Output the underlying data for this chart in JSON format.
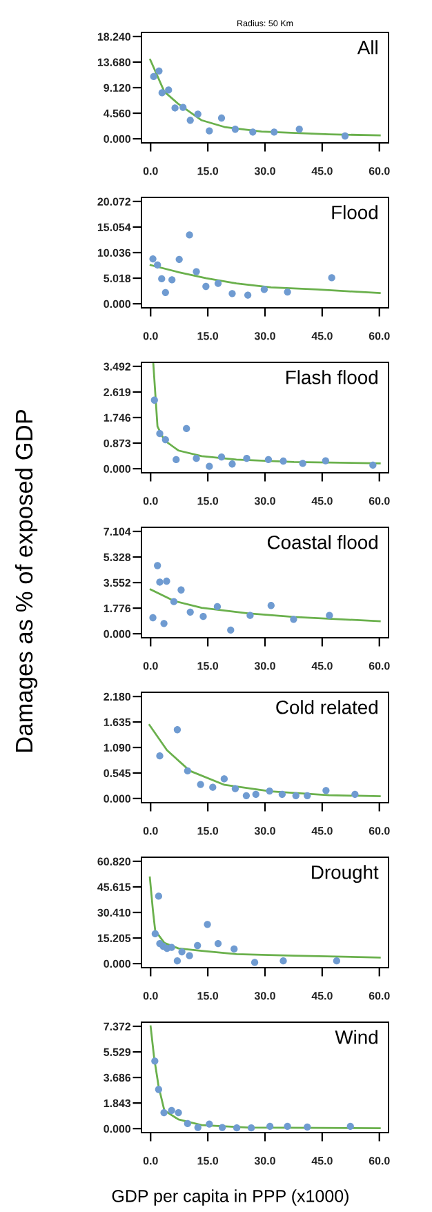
{
  "chart_data": [
    {
      "type": "scatter",
      "subtitle": "Radius: 50 Km",
      "title": "All",
      "xlim": [
        -2.4,
        62.4
      ],
      "ylim": [
        -0.73,
        18.97
      ],
      "xticks": [
        {
          "value": 0,
          "label": "0.0"
        },
        {
          "value": 15,
          "label": "15.0"
        },
        {
          "value": 30,
          "label": "30.0"
        },
        {
          "value": 45,
          "label": "45.0"
        },
        {
          "value": 60,
          "label": "60.0"
        }
      ],
      "yticks": [
        {
          "value": 0,
          "label": "0.000"
        },
        {
          "value": 4.56,
          "label": "4.560"
        },
        {
          "value": 9.12,
          "label": "9.120"
        },
        {
          "value": 13.68,
          "label": "13.680"
        },
        {
          "value": 18.24,
          "label": "18.240"
        }
      ],
      "series": [
        {
          "type": "scatter",
          "marker": "circle",
          "color": "#6f9bd1",
          "x": [
            0.8,
            2.2,
            3.0,
            4.7,
            6.4,
            8.5,
            10.4,
            12.4,
            15.4,
            18.6,
            22.2,
            26.8,
            32.4,
            39.0,
            51.0
          ],
          "values": [
            11.1,
            12.1,
            8.2,
            8.7,
            5.5,
            5.6,
            3.3,
            4.4,
            1.4,
            3.7,
            1.7,
            1.2,
            1.2,
            1.7,
            0.5
          ]
        },
        {
          "type": "line",
          "color": "#6ab04c",
          "x": [
            -0.1,
            3.6,
            7.3,
            13.4,
            19.4,
            29.1,
            46.8,
            60.1
          ],
          "values": [
            14.1,
            8.4,
            6.2,
            3.3,
            2.1,
            1.3,
            0.8,
            0.6
          ]
        }
      ]
    },
    {
      "type": "scatter",
      "title": "Flood",
      "xlim": [
        -2.4,
        62.4
      ],
      "ylim": [
        -0.8,
        20.87
      ],
      "xticks": [
        {
          "value": 0,
          "label": "0.0"
        },
        {
          "value": 15,
          "label": "15.0"
        },
        {
          "value": 30,
          "label": "30.0"
        },
        {
          "value": 45,
          "label": "45.0"
        },
        {
          "value": 60,
          "label": "60.0"
        }
      ],
      "yticks": [
        {
          "value": 0,
          "label": "0.000"
        },
        {
          "value": 5.018,
          "label": "5.018"
        },
        {
          "value": 10.036,
          "label": "10.036"
        },
        {
          "value": 15.054,
          "label": "15.054"
        },
        {
          "value": 20.072,
          "label": "20.072"
        }
      ],
      "series": [
        {
          "type": "scatter",
          "marker": "circle",
          "color": "#6f9bd1",
          "x": [
            0.6,
            1.8,
            2.9,
            3.9,
            5.6,
            7.5,
            10.2,
            12.0,
            14.5,
            17.7,
            21.4,
            25.5,
            29.8,
            35.9,
            47.5
          ],
          "values": [
            8.8,
            7.6,
            4.9,
            2.2,
            4.7,
            8.7,
            13.5,
            6.3,
            3.4,
            4.0,
            2.0,
            1.7,
            2.8,
            2.3,
            5.1
          ]
        },
        {
          "type": "line",
          "color": "#6ab04c",
          "x": [
            0,
            7.3,
            14.6,
            22.5,
            31.6,
            43.7,
            60.1
          ],
          "values": [
            7.6,
            6.2,
            5.0,
            4.0,
            3.2,
            2.8,
            2.1
          ]
        }
      ]
    },
    {
      "type": "scatter",
      "title": "Flash flood",
      "xlim": [
        -2.4,
        62.4
      ],
      "ylim": [
        -0.14,
        3.63
      ],
      "xticks": [
        {
          "value": 0,
          "label": "0.0"
        },
        {
          "value": 15,
          "label": "15.0"
        },
        {
          "value": 30,
          "label": "30.0"
        },
        {
          "value": 45,
          "label": "45.0"
        },
        {
          "value": 60,
          "label": "60.0"
        }
      ],
      "yticks": [
        {
          "value": 0,
          "label": "0.000"
        },
        {
          "value": 0.873,
          "label": "0.873"
        },
        {
          "value": 1.746,
          "label": "1.746"
        },
        {
          "value": 2.619,
          "label": "2.619"
        },
        {
          "value": 3.492,
          "label": "3.492"
        }
      ],
      "series": [
        {
          "type": "scatter",
          "marker": "circle",
          "color": "#6f9bd1",
          "x": [
            1.0,
            2.4,
            3.9,
            6.7,
            9.4,
            12.0,
            15.4,
            18.6,
            21.4,
            25.2,
            30.9,
            34.8,
            39.9,
            45.9,
            58.3
          ],
          "values": [
            2.34,
            1.2,
            0.99,
            0.31,
            1.37,
            0.35,
            0.08,
            0.4,
            0.16,
            0.35,
            0.31,
            0.26,
            0.18,
            0.27,
            0.12
          ]
        },
        {
          "type": "line",
          "color": "#6ab04c",
          "x": [
            0.7,
            1.8,
            3.6,
            7.3,
            13.4,
            22.5,
            37.6,
            60.1
          ],
          "values": [
            3.6,
            1.44,
            0.97,
            0.62,
            0.43,
            0.31,
            0.23,
            0.18
          ]
        }
      ]
    },
    {
      "type": "scatter",
      "title": "Coastal flood",
      "ylabel": "Damages as % of exposed GDP",
      "xlim": [
        -2.4,
        62.4
      ],
      "ylim": [
        -0.28,
        7.39
      ],
      "xticks": [
        {
          "value": 0,
          "label": "0.0"
        },
        {
          "value": 15,
          "label": "15.0"
        },
        {
          "value": 30,
          "label": "30.0"
        },
        {
          "value": 45,
          "label": "45.0"
        },
        {
          "value": 60,
          "label": "60.0"
        }
      ],
      "yticks": [
        {
          "value": 0,
          "label": "0.000"
        },
        {
          "value": 1.776,
          "label": "1.776"
        },
        {
          "value": 3.552,
          "label": "3.552"
        },
        {
          "value": 5.328,
          "label": "5.328"
        },
        {
          "value": 7.104,
          "label": "7.104"
        }
      ],
      "series": [
        {
          "type": "scatter",
          "marker": "circle",
          "color": "#6f9bd1",
          "x": [
            0.6,
            1.8,
            2.4,
            3.5,
            4.2,
            6.1,
            8.0,
            10.4,
            13.8,
            17.5,
            21.0,
            26.1,
            31.6,
            37.5,
            46.9
          ],
          "values": [
            1.11,
            4.73,
            3.58,
            0.71,
            3.65,
            2.23,
            3.04,
            1.5,
            1.2,
            1.88,
            0.25,
            1.27,
            1.96,
            1.0,
            1.27
          ]
        },
        {
          "type": "line",
          "color": "#6ab04c",
          "x": [
            0,
            6.1,
            13.4,
            25.5,
            37.6,
            60.1
          ],
          "values": [
            3.07,
            2.28,
            1.8,
            1.42,
            1.16,
            0.87
          ]
        }
      ]
    },
    {
      "type": "scatter",
      "title": "Cold related",
      "xlim": [
        -2.4,
        62.4
      ],
      "ylim": [
        -0.09,
        2.27
      ],
      "xticks": [
        {
          "value": 0,
          "label": "0.0"
        },
        {
          "value": 15,
          "label": "15.0"
        },
        {
          "value": 30,
          "label": "30.0"
        },
        {
          "value": 45,
          "label": "45.0"
        },
        {
          "value": 60,
          "label": "60.0"
        }
      ],
      "yticks": [
        {
          "value": 0,
          "label": "0.000"
        },
        {
          "value": 0.545,
          "label": "0.545"
        },
        {
          "value": 1.09,
          "label": "1.090"
        },
        {
          "value": 1.635,
          "label": "1.635"
        },
        {
          "value": 2.18,
          "label": "2.180"
        }
      ],
      "series": [
        {
          "type": "scatter",
          "marker": "circle",
          "color": "#6f9bd1",
          "x": [
            2.4,
            7.0,
            9.7,
            13.1,
            16.3,
            19.3,
            22.2,
            25.1,
            27.6,
            31.2,
            34.5,
            38.1,
            41.1,
            46.0,
            53.6
          ],
          "values": [
            0.91,
            1.47,
            0.59,
            0.3,
            0.24,
            0.42,
            0.21,
            0.06,
            0.09,
            0.16,
            0.09,
            0.06,
            0.06,
            0.17,
            0.09
          ]
        },
        {
          "type": "line",
          "color": "#6ab04c",
          "x": [
            -0.3,
            4.3,
            10.3,
            19.4,
            31.6,
            46.8,
            60.1
          ],
          "values": [
            1.57,
            1.03,
            0.59,
            0.29,
            0.15,
            0.07,
            0.05
          ]
        }
      ]
    },
    {
      "type": "scatter",
      "title": "Drought",
      "xlim": [
        -2.4,
        62.4
      ],
      "ylim": [
        -2.43,
        63.25
      ],
      "xticks": [
        {
          "value": 0,
          "label": "0.0"
        },
        {
          "value": 15,
          "label": "15.0"
        },
        {
          "value": 30,
          "label": "30.0"
        },
        {
          "value": 45,
          "label": "45.0"
        },
        {
          "value": 60,
          "label": "60.0"
        }
      ],
      "yticks": [
        {
          "value": 0,
          "label": "0.000"
        },
        {
          "value": 15.205,
          "label": "15.205"
        },
        {
          "value": 30.41,
          "label": "30.410"
        },
        {
          "value": 45.615,
          "label": "45.615"
        },
        {
          "value": 60.82,
          "label": "60.820"
        }
      ],
      "series": [
        {
          "type": "scatter",
          "marker": "circle",
          "color": "#6f9bd1",
          "x": [
            1.2,
            2.1,
            2.4,
            3.3,
            4.3,
            5.5,
            7.0,
            8.2,
            10.2,
            12.3,
            14.9,
            17.7,
            21.9,
            27.3,
            34.8,
            48.8
          ],
          "values": [
            17.7,
            40.1,
            11.9,
            10.3,
            9.0,
            9.6,
            1.6,
            7.0,
            4.7,
            10.7,
            23.3,
            11.9,
            8.7,
            0.7,
            1.6,
            1.6
          ]
        },
        {
          "type": "line",
          "color": "#6ab04c",
          "x": [
            -0.2,
            0.6,
            1.2,
            3.6,
            7.3,
            13.4,
            22.5,
            37.6,
            60.1
          ],
          "values": [
            51.2,
            31.7,
            19.7,
            12.3,
            9.0,
            7.6,
            5.6,
            4.7,
            3.6
          ]
        }
      ]
    },
    {
      "type": "scatter",
      "title": "Wind",
      "xlabel": "GDP per capita in PPP (x1000)",
      "xlim": [
        -2.4,
        62.4
      ],
      "ylim": [
        -0.29,
        7.67
      ],
      "xticks": [
        {
          "value": 0,
          "label": "0.0"
        },
        {
          "value": 15,
          "label": "15.0"
        },
        {
          "value": 30,
          "label": "30.0"
        },
        {
          "value": 45,
          "label": "45.0"
        },
        {
          "value": 60,
          "label": "60.0"
        }
      ],
      "yticks": [
        {
          "value": 0,
          "label": "0.000"
        },
        {
          "value": 1.843,
          "label": "1.843"
        },
        {
          "value": 3.686,
          "label": "3.686"
        },
        {
          "value": 5.529,
          "label": "5.529"
        },
        {
          "value": 7.372,
          "label": "7.372"
        }
      ],
      "series": [
        {
          "type": "scatter",
          "marker": "circle",
          "color": "#6f9bd1",
          "x": [
            1.1,
            2.1,
            3.5,
            5.5,
            7.3,
            9.7,
            12.4,
            15.4,
            18.8,
            22.6,
            26.4,
            31.3,
            35.9,
            41.1,
            52.4
          ],
          "values": [
            4.87,
            2.82,
            1.15,
            1.31,
            1.15,
            0.36,
            0.08,
            0.33,
            0.08,
            0.05,
            0.05,
            0.16,
            0.16,
            0.11,
            0.16
          ]
        },
        {
          "type": "line",
          "color": "#6ab04c",
          "x": [
            0,
            0.9,
            2.1,
            3.6,
            7.3,
            13.4,
            25.5,
            60.1
          ],
          "values": [
            7.37,
            5.16,
            3.03,
            1.31,
            0.66,
            0.25,
            0.08,
            0.03
          ]
        }
      ]
    }
  ]
}
